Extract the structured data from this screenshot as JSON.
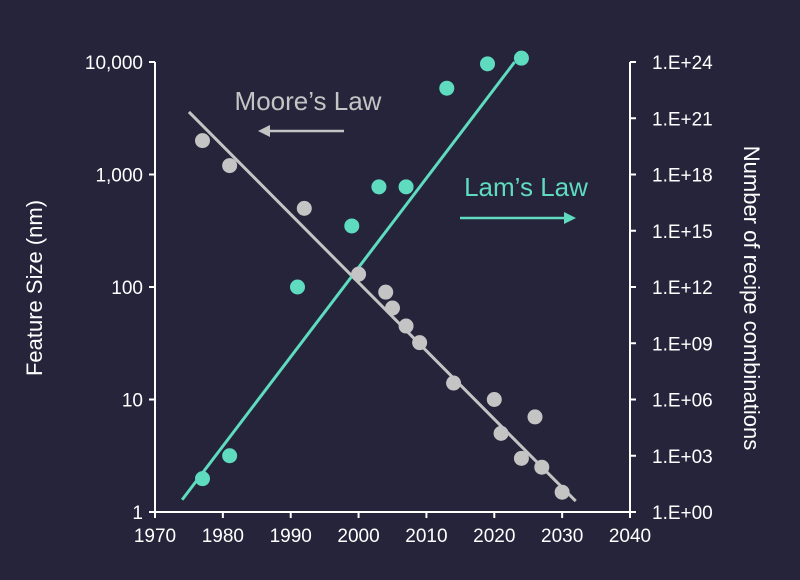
{
  "chart_data": {
    "type": "scatter",
    "x_axis": {
      "ticks": [
        1970,
        1980,
        1990,
        2000,
        2010,
        2020,
        2030,
        2040
      ],
      "range": [
        1970,
        2040
      ]
    },
    "y_left": {
      "label": "Feature Size (nm)",
      "scale": "log",
      "range": [
        1,
        10000
      ],
      "ticks": [
        {
          "v": 1,
          "label": "1"
        },
        {
          "v": 10,
          "label": "10"
        },
        {
          "v": 100,
          "label": "100"
        },
        {
          "v": 1000,
          "label": "1,000"
        },
        {
          "v": 10000,
          "label": "10,000"
        }
      ]
    },
    "y_right": {
      "label": "Number of recipe combinations",
      "scale": "log",
      "range": [
        1,
        1e+24
      ],
      "ticks": [
        {
          "v": 1,
          "label": "1.E+00"
        },
        {
          "v": 1000.0,
          "label": "1.E+03"
        },
        {
          "v": 1000000.0,
          "label": "1.E+06"
        },
        {
          "v": 1000000000.0,
          "label": "1.E+09"
        },
        {
          "v": 1000000000000.0,
          "label": "1.E+12"
        },
        {
          "v": 1000000000000000.0,
          "label": "1.E+15"
        },
        {
          "v": 1e+18,
          "label": "1.E+18"
        },
        {
          "v": 1e+21,
          "label": "1.E+21"
        },
        {
          "v": 1e+24,
          "label": "1.E+24"
        }
      ]
    },
    "series": [
      {
        "name": "Moore's Law",
        "axis": "left",
        "color": "#c4c4c4",
        "points": [
          [
            1977,
            2000
          ],
          [
            1981,
            1200
          ],
          [
            1992,
            500
          ],
          [
            2000,
            130
          ],
          [
            2004,
            90
          ],
          [
            2005,
            65
          ],
          [
            2007,
            45
          ],
          [
            2009,
            32
          ],
          [
            2014,
            14
          ],
          [
            2020,
            10
          ],
          [
            2021,
            5
          ],
          [
            2024,
            3
          ],
          [
            2026,
            7
          ],
          [
            2027,
            2.5
          ],
          [
            2030,
            1.5
          ]
        ],
        "trend": [
          [
            1975,
            3600
          ],
          [
            2032,
            1.25
          ]
        ]
      },
      {
        "name": "Lam's Law",
        "axis": "right",
        "color": "#5fdcbf",
        "points": [
          [
            1977,
            60
          ],
          [
            1981,
            1000
          ],
          [
            1991,
            1000000000000.0
          ],
          [
            1999,
            1800000000000000.0
          ],
          [
            2003,
            2.2e+17
          ],
          [
            2007,
            2.2e+17
          ],
          [
            2013,
            4e+22
          ],
          [
            2019,
            8e+23
          ],
          [
            2024,
            1.6e+24
          ]
        ],
        "trend": [
          [
            1974,
            4.5
          ],
          [
            2023,
            1e+24
          ]
        ]
      }
    ],
    "annotations": [
      {
        "text": "Moore’s Law",
        "series": 0,
        "arrow": "left"
      },
      {
        "text": "Lam’s Law",
        "series": 1,
        "arrow": "right"
      }
    ]
  }
}
